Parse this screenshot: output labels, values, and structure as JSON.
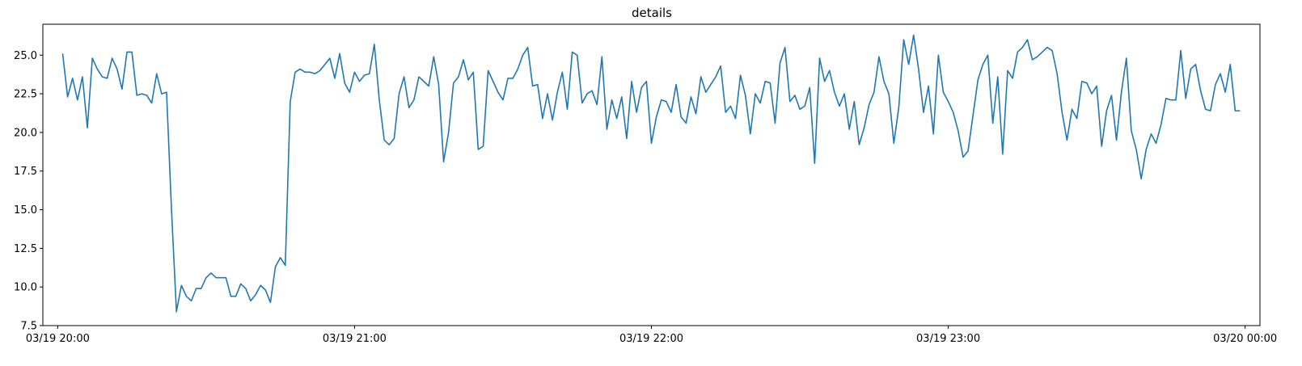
{
  "chart_data": {
    "type": "line",
    "title": "details",
    "xlabel": "",
    "ylabel": "",
    "x_axis_type": "datetime",
    "xlim": [
      "03/19 19:57",
      "03/20 00:03"
    ],
    "ylim": [
      7.5,
      27.0
    ],
    "x_ticks": [
      "03/19 20:00",
      "03/19 21:00",
      "03/19 22:00",
      "03/19 23:00",
      "03/20 00:00"
    ],
    "y_ticks": [
      "7.5",
      "10.0",
      "12.5",
      "15.0",
      "17.5",
      "20.0",
      "22.5",
      "25.0"
    ],
    "grid": false,
    "legend": "none",
    "series_color": "#1f77b4",
    "series": [
      {
        "values": [
          25.1,
          22.3,
          23.5,
          22.1,
          23.6,
          20.3,
          24.8,
          24.1,
          23.6,
          23.5,
          24.8,
          24.1,
          22.8,
          25.2,
          25.2,
          22.4,
          22.5,
          22.4,
          21.9,
          23.8,
          22.5,
          22.6,
          15.0,
          8.4,
          10.1,
          9.4,
          9.1,
          9.9,
          9.9,
          10.6,
          10.9,
          10.6,
          10.6,
          10.6,
          9.4,
          9.4,
          10.2,
          9.9,
          9.1,
          9.5,
          10.1,
          9.8,
          9.0,
          11.3,
          11.9,
          11.4,
          22.0,
          23.9,
          24.1,
          23.9,
          23.9,
          23.8,
          24.0,
          24.4,
          24.8,
          23.5,
          25.1,
          23.2,
          22.6,
          23.9,
          23.3,
          23.7,
          23.8,
          25.7,
          22.1,
          19.5,
          19.2,
          19.6,
          22.5,
          23.6,
          21.6,
          22.1,
          23.6,
          23.3,
          23.0,
          24.9,
          23.1,
          18.1,
          20.0,
          23.2,
          23.6,
          24.7,
          23.4,
          23.9,
          18.9,
          19.1,
          24.0,
          23.3,
          22.6,
          22.1,
          23.5,
          23.5,
          24.1,
          25.0,
          25.5,
          23.0,
          23.1,
          20.9,
          22.5,
          20.8,
          22.6,
          23.9,
          21.5,
          25.2,
          25.0,
          21.9,
          22.5,
          22.7,
          21.8,
          24.9,
          20.2,
          22.1,
          20.9,
          22.3,
          19.6,
          23.3,
          21.3,
          22.9,
          23.3,
          19.3,
          21.0,
          22.1,
          22.0,
          21.3,
          23.1,
          21.0,
          20.6,
          22.3,
          21.2,
          23.6,
          22.6,
          23.1,
          23.6,
          24.3,
          21.3,
          21.7,
          20.9,
          23.7,
          22.4,
          19.9,
          22.5,
          21.9,
          23.3,
          23.2,
          20.6,
          24.5,
          25.5,
          22.0,
          22.4,
          21.5,
          21.7,
          22.9,
          18.0,
          24.8,
          23.3,
          24.0,
          22.6,
          21.7,
          22.5,
          20.2,
          22.0,
          19.2,
          20.3,
          21.8,
          22.6,
          24.9,
          23.3,
          22.5,
          19.3,
          21.6,
          26.0,
          24.4,
          26.3,
          24.1,
          21.3,
          23.0,
          19.9,
          25.0,
          22.6,
          22.0,
          21.3,
          20.1,
          18.4,
          18.8,
          21.1,
          23.4,
          24.4,
          25.0,
          20.6,
          23.6,
          18.6,
          24.0,
          23.5,
          25.2,
          25.5,
          26.0,
          24.7,
          24.9,
          25.2,
          25.5,
          25.3,
          23.8,
          21.3,
          19.5,
          21.5,
          20.9,
          23.3,
          23.2,
          22.5,
          23.0,
          19.1,
          21.4,
          22.4,
          19.5,
          22.6,
          24.8,
          20.1,
          18.9,
          17.0,
          18.9,
          19.9,
          19.3,
          20.5,
          22.2,
          22.1,
          22.1,
          25.3,
          22.2,
          24.1,
          24.4,
          22.7,
          21.5,
          21.4,
          23.1,
          23.8,
          22.6,
          24.4,
          21.4,
          21.4
        ]
      }
    ],
    "x_range_note": ""
  }
}
